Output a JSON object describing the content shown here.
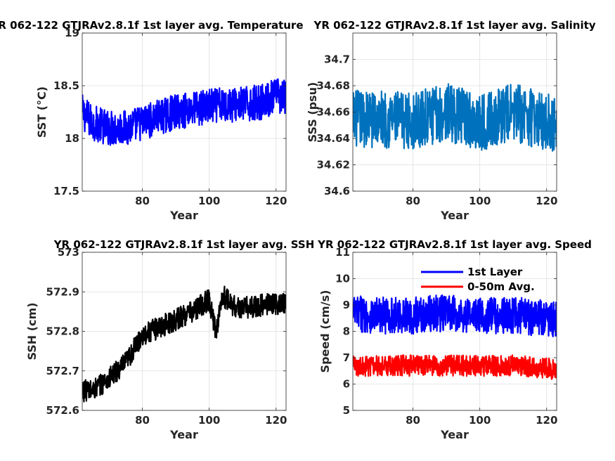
{
  "chart_data": [
    {
      "type": "line",
      "title": "YR 062-122 GTJRAv2.8.1f 1st layer avg. Temperature",
      "xlabel": "Year",
      "ylabel": "SST (°C)",
      "xlim": [
        62,
        123
      ],
      "ylim": [
        17.5,
        19
      ],
      "xticks": [
        80,
        100,
        120
      ],
      "yticks": [
        17.5,
        18,
        18.5,
        19
      ],
      "ytick_labels": [
        "17.5",
        "18",
        "18.5",
        "19"
      ],
      "grid": true,
      "series": [
        {
          "color": "#0000ff",
          "x": [
            62,
            65,
            70,
            75,
            80,
            85,
            90,
            95,
            100,
            105,
            110,
            115,
            120,
            123
          ],
          "y": [
            18.25,
            18.15,
            18.1,
            18.1,
            18.15,
            18.2,
            18.25,
            18.28,
            18.3,
            18.32,
            18.32,
            18.34,
            18.4,
            18.4
          ],
          "noise": 0.17,
          "points_per_year": 12
        }
      ]
    },
    {
      "type": "line",
      "title": "YR 062-122 GTJRAv2.8.1f 1st layer avg. Salinity",
      "xlabel": "Year",
      "ylabel": "SSS (psu)",
      "xlim": [
        62,
        123
      ],
      "ylim": [
        34.6,
        34.72
      ],
      "xticks": [
        80,
        100,
        120
      ],
      "yticks": [
        34.6,
        34.62,
        34.64,
        34.66,
        34.68,
        34.7
      ],
      "ytick_labels": [
        "34.6",
        "34.62",
        "34.64",
        "34.66",
        "34.68",
        "34.7"
      ],
      "grid": true,
      "series": [
        {
          "color": "#0072bd",
          "x": [
            62,
            70,
            80,
            90,
            100,
            110,
            120,
            123
          ],
          "y": [
            34.655,
            34.655,
            34.653,
            34.66,
            34.652,
            34.66,
            34.652,
            34.65
          ],
          "noise": 0.022,
          "points_per_year": 12
        }
      ]
    },
    {
      "type": "line",
      "title": "YR 062-122 GTJRAv2.8.1f 1st layer avg. SSH",
      "xlabel": "Year",
      "ylabel": "SSH (cm)",
      "xlim": [
        62,
        123
      ],
      "ylim": [
        572.6,
        573
      ],
      "xticks": [
        80,
        100,
        120
      ],
      "yticks": [
        572.6,
        572.7,
        572.8,
        572.9,
        573
      ],
      "ytick_labels": [
        "572.6",
        "572.7",
        "572.8",
        "572.9",
        "573"
      ],
      "grid": true,
      "series": [
        {
          "color": "#000000",
          "x": [
            62,
            65,
            70,
            75,
            80,
            85,
            90,
            95,
            100,
            102,
            104,
            108,
            112,
            118,
            123
          ],
          "y": [
            572.65,
            572.65,
            572.68,
            572.72,
            572.79,
            572.81,
            572.83,
            572.85,
            572.88,
            572.8,
            572.89,
            572.86,
            572.86,
            572.87,
            572.87
          ],
          "noise": 0.028,
          "points_per_year": 12
        }
      ]
    },
    {
      "type": "line",
      "title": "YR 062-122 GTJRAv2.8.1f 1st layer avg. Speed",
      "xlabel": "Year",
      "ylabel": "Speed (cm/s)",
      "xlim": [
        62,
        123
      ],
      "ylim": [
        5,
        11
      ],
      "xticks": [
        80,
        100,
        120
      ],
      "yticks": [
        5,
        6,
        7,
        8,
        9,
        10,
        11
      ],
      "ytick_labels": [
        "5",
        "6",
        "7",
        "8",
        "9",
        "10",
        "11"
      ],
      "grid": true,
      "legend_position": "top",
      "series": [
        {
          "name": "1st Layer",
          "color": "#0000ff",
          "x": [
            62,
            70,
            80,
            90,
            100,
            110,
            120,
            123
          ],
          "y": [
            8.7,
            8.6,
            8.6,
            8.7,
            8.6,
            8.6,
            8.5,
            8.4
          ],
          "noise": 0.7,
          "points_per_year": 12
        },
        {
          "name": "0-50m Avg.",
          "color": "#ff0000",
          "x": [
            62,
            70,
            80,
            90,
            100,
            110,
            120,
            123
          ],
          "y": [
            6.7,
            6.7,
            6.7,
            6.7,
            6.7,
            6.7,
            6.6,
            6.5
          ],
          "noise": 0.4,
          "points_per_year": 12
        }
      ]
    }
  ]
}
